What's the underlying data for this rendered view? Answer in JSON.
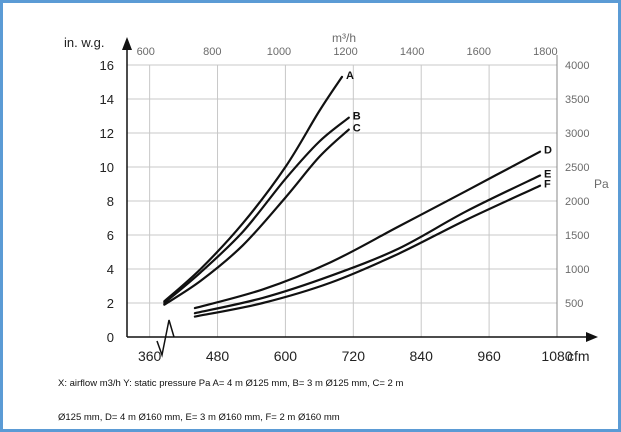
{
  "chart_data": {
    "type": "line",
    "y_unit_label": "in. w.g.",
    "y_ticks": [
      0,
      2,
      4,
      6,
      8,
      10,
      12,
      14,
      16
    ],
    "y_range": [
      0,
      16
    ],
    "right_unit_label": "Pa",
    "right_ticks": [
      500,
      1000,
      1500,
      2000,
      2500,
      3000,
      3500,
      4000
    ],
    "right_range": [
      0,
      4000
    ],
    "bottom_unit_label": "cfm",
    "bottom_ticks": [
      360,
      480,
      600,
      720,
      840,
      960,
      1080
    ],
    "x_range": [
      320,
      1080
    ],
    "top_unit_label": "m³/h",
    "top_ticks": [
      600,
      800,
      1000,
      1200,
      1400,
      1600,
      1800
    ],
    "grid": true,
    "axis_break": true,
    "series": [
      {
        "name": "A",
        "x": [
          386,
          450,
          525,
          600,
          660,
          700
        ],
        "y": [
          2.1,
          4.0,
          6.7,
          10.0,
          13.3,
          15.3
        ]
      },
      {
        "name": "B",
        "x": [
          386,
          450,
          525,
          600,
          660,
          712
        ],
        "y": [
          2.0,
          3.8,
          6.2,
          9.3,
          11.5,
          12.9
        ]
      },
      {
        "name": "C",
        "x": [
          386,
          450,
          525,
          600,
          660,
          712
        ],
        "y": [
          1.9,
          3.3,
          5.4,
          8.2,
          10.6,
          12.2
        ]
      },
      {
        "name": "D",
        "x": [
          440,
          560,
          680,
          800,
          920,
          1050
        ],
        "y": [
          1.7,
          2.8,
          4.4,
          6.5,
          8.6,
          10.9
        ]
      },
      {
        "name": "E",
        "x": [
          440,
          560,
          680,
          800,
          920,
          1050
        ],
        "y": [
          1.4,
          2.3,
          3.6,
          5.2,
          7.4,
          9.5
        ]
      },
      {
        "name": "F",
        "x": [
          440,
          560,
          680,
          800,
          920,
          1050
        ],
        "y": [
          1.2,
          2.0,
          3.2,
          4.9,
          6.9,
          8.9
        ]
      }
    ]
  },
  "caption": {
    "line1": "X: airflow m3/h Y: static pressure Pa A= 4 m Ø125 mm, B= 3 m Ø125 mm, C= 2 m",
    "line2": "Ø125 mm, D= 4 m Ø160 mm, E= 3 m Ø160 mm, F= 2 m Ø160 mm"
  },
  "colors": {
    "frame": "#5b9bd5",
    "curve": "#111111",
    "grid": "#c8c8c8",
    "axis": "#111111",
    "tick_text": "#222222",
    "secondary_text": "#6b6b6b"
  }
}
